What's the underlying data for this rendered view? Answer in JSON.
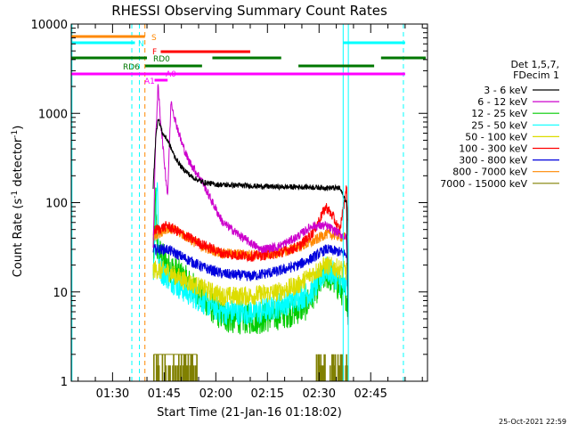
{
  "chart_data": {
    "type": "line",
    "title": "RHESSI Observing Summary Count Rates",
    "xlabel": "Start Time (21-Jan-16 01:18:02)",
    "ylabel_parts": [
      "Count Rate (s",
      "-1",
      " detector",
      "-1",
      ")"
    ],
    "yscale": "log",
    "ylim": [
      1,
      10000
    ],
    "xlim_minutes_after_0118": [
      0,
      103.5
    ],
    "x_ticks": [
      {
        "label": "01:30",
        "minute": 12
      },
      {
        "label": "01:45",
        "minute": 27
      },
      {
        "label": "02:00",
        "minute": 42
      },
      {
        "label": "02:15",
        "minute": 57
      },
      {
        "label": "02:30",
        "minute": 72
      },
      {
        "label": "02:45",
        "minute": 87
      }
    ],
    "y_ticks": [
      {
        "label": "1",
        "value": 1
      },
      {
        "label": "10",
        "value": 10
      },
      {
        "label": "100",
        "value": 100
      },
      {
        "label": "1000",
        "value": 1000
      },
      {
        "label": "10000",
        "value": 10000
      }
    ],
    "legend_header": [
      "Det 1,5,7,",
      "FDecim 1"
    ],
    "series": [
      {
        "name": "3 - 6 keV",
        "color": "#000000",
        "points": [
          [
            23.8,
            150
          ],
          [
            24.5,
            500
          ],
          [
            25.2,
            900
          ],
          [
            26.5,
            600
          ],
          [
            28,
            500
          ],
          [
            30,
            330
          ],
          [
            32,
            250
          ],
          [
            35,
            195
          ],
          [
            38,
            170
          ],
          [
            42,
            160
          ],
          [
            50,
            155
          ],
          [
            60,
            150
          ],
          [
            68,
            150
          ],
          [
            72,
            148
          ],
          [
            78,
            145
          ],
          [
            80,
            100
          ],
          [
            80.5,
            3
          ]
        ]
      },
      {
        "name": "6 - 12 keV",
        "color": "#cc00cc",
        "points": [
          [
            23.8,
            30
          ],
          [
            24.5,
            500
          ],
          [
            25.2,
            2000
          ],
          [
            26,
            800
          ],
          [
            27,
            300
          ],
          [
            28,
            120
          ],
          [
            29,
            1400
          ],
          [
            30,
            900
          ],
          [
            32,
            480
          ],
          [
            34,
            300
          ],
          [
            38,
            175
          ],
          [
            40,
            120
          ],
          [
            44,
            60
          ],
          [
            50,
            40
          ],
          [
            55,
            30
          ],
          [
            60,
            32
          ],
          [
            65,
            40
          ],
          [
            70,
            55
          ],
          [
            74,
            55
          ],
          [
            78,
            45
          ],
          [
            80,
            40
          ],
          [
            80.5,
            5
          ]
        ]
      },
      {
        "name": "12 - 25 keV",
        "color": "#00cc00",
        "points": [
          [
            23.8,
            14
          ],
          [
            24.5,
            120
          ],
          [
            25,
            30
          ],
          [
            28,
            20
          ],
          [
            32,
            15
          ],
          [
            38,
            9
          ],
          [
            42,
            6
          ],
          [
            46,
            5
          ],
          [
            55,
            5
          ],
          [
            64,
            6
          ],
          [
            68,
            7
          ],
          [
            72,
            12
          ],
          [
            74,
            16
          ],
          [
            76,
            14
          ],
          [
            78,
            11
          ],
          [
            80,
            9
          ],
          [
            80.5,
            6
          ]
        ]
      },
      {
        "name": "25 - 50 keV",
        "color": "#00ffff",
        "points": [
          [
            23.8,
            15
          ],
          [
            25,
            200
          ],
          [
            25.5,
            18
          ],
          [
            28,
            15
          ],
          [
            32,
            11
          ],
          [
            38,
            8
          ],
          [
            44,
            6
          ],
          [
            55,
            6
          ],
          [
            64,
            8
          ],
          [
            70,
            10
          ],
          [
            74,
            18
          ],
          [
            76,
            16
          ],
          [
            78,
            13
          ],
          [
            80,
            11
          ]
        ]
      },
      {
        "name": "50 - 100 keV",
        "color": "#dddd00",
        "points": [
          [
            23.8,
            18
          ],
          [
            28,
            17
          ],
          [
            32,
            14
          ],
          [
            38,
            11
          ],
          [
            44,
            9
          ],
          [
            52,
            9
          ],
          [
            60,
            10
          ],
          [
            66,
            12
          ],
          [
            70,
            16
          ],
          [
            74,
            20
          ],
          [
            78,
            18
          ],
          [
            80,
            17
          ]
        ]
      },
      {
        "name": "100 - 300 keV",
        "color": "#ff0000",
        "points": [
          [
            23.8,
            48
          ],
          [
            28,
            55
          ],
          [
            32,
            45
          ],
          [
            38,
            34
          ],
          [
            44,
            27
          ],
          [
            52,
            25
          ],
          [
            60,
            27
          ],
          [
            66,
            32
          ],
          [
            70,
            45
          ],
          [
            74,
            90
          ],
          [
            76,
            70
          ],
          [
            78,
            48
          ],
          [
            80,
            150
          ],
          [
            80.5,
            40
          ]
        ]
      },
      {
        "name": "300 - 800 keV",
        "color": "#0000dd",
        "points": [
          [
            23.8,
            30
          ],
          [
            28,
            30
          ],
          [
            32,
            25
          ],
          [
            38,
            19
          ],
          [
            44,
            16
          ],
          [
            52,
            15
          ],
          [
            60,
            17
          ],
          [
            66,
            20
          ],
          [
            70,
            24
          ],
          [
            74,
            30
          ],
          [
            78,
            28
          ],
          [
            80,
            26
          ]
        ]
      },
      {
        "name": "800 - 7000 keV",
        "color": "#ff8800",
        "points": [
          [
            23.8,
            42
          ],
          [
            28,
            52
          ],
          [
            32,
            45
          ],
          [
            38,
            32
          ],
          [
            44,
            27
          ],
          [
            52,
            26
          ],
          [
            60,
            27
          ],
          [
            66,
            32
          ],
          [
            70,
            36
          ],
          [
            74,
            45
          ],
          [
            78,
            42
          ],
          [
            80,
            40
          ]
        ]
      },
      {
        "name": "7000 - 15000 keV",
        "color": "#808000",
        "points": []
      }
    ],
    "flag_labels": {
      "S": "S",
      "N": "N",
      "F": "F",
      "RD0": "RD0",
      "RD6": "RD6",
      "A1": "A1",
      "A0": "A0"
    },
    "footer_date": "25-Oct-2021 22:59"
  }
}
